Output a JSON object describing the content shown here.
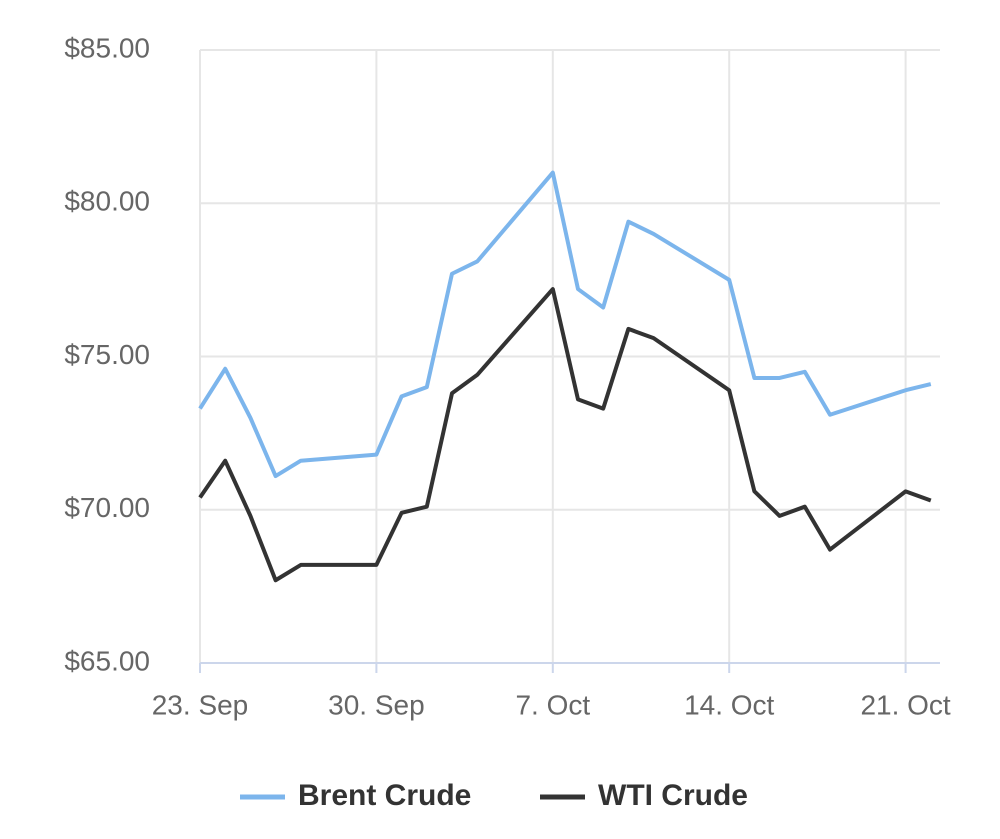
{
  "chart_data": {
    "type": "line",
    "x": [
      "23. Sep",
      "24. Sep",
      "25. Sep",
      "26. Sep",
      "27. Sep",
      "30. Sep",
      "1. Oct",
      "2. Oct",
      "3. Oct",
      "4. Oct",
      "7. Oct",
      "8. Oct",
      "9. Oct",
      "10. Oct",
      "11. Oct",
      "14. Oct",
      "15. Oct",
      "16. Oct",
      "17. Oct",
      "18. Oct",
      "21. Oct",
      "22. Oct"
    ],
    "series": [
      {
        "name": "Brent Crude",
        "color": "#7cb5ec",
        "values": [
          73.3,
          74.6,
          73.0,
          71.1,
          71.6,
          71.8,
          73.7,
          74.0,
          77.7,
          78.1,
          81.0,
          77.2,
          76.6,
          79.4,
          79.0,
          77.5,
          74.3,
          74.3,
          74.5,
          73.1,
          73.9,
          74.1
        ]
      },
      {
        "name": "WTI Crude",
        "color": "#333333",
        "values": [
          70.4,
          71.6,
          69.8,
          67.7,
          68.2,
          68.2,
          69.9,
          70.1,
          73.8,
          74.4,
          77.2,
          73.6,
          73.3,
          75.9,
          75.6,
          73.9,
          70.6,
          69.8,
          70.1,
          68.7,
          70.6,
          70.3
        ]
      }
    ],
    "xticks": [
      "23. Sep",
      "30. Sep",
      "7. Oct",
      "14. Oct",
      "21. Oct"
    ],
    "ylim": [
      65,
      85
    ],
    "yticks": [
      {
        "value": 65,
        "label": "$65.00"
      },
      {
        "value": 70,
        "label": "$70.00"
      },
      {
        "value": 75,
        "label": "$75.00"
      },
      {
        "value": 80,
        "label": "$80.00"
      },
      {
        "value": 85,
        "label": "$85.00"
      }
    ],
    "grid": true
  }
}
